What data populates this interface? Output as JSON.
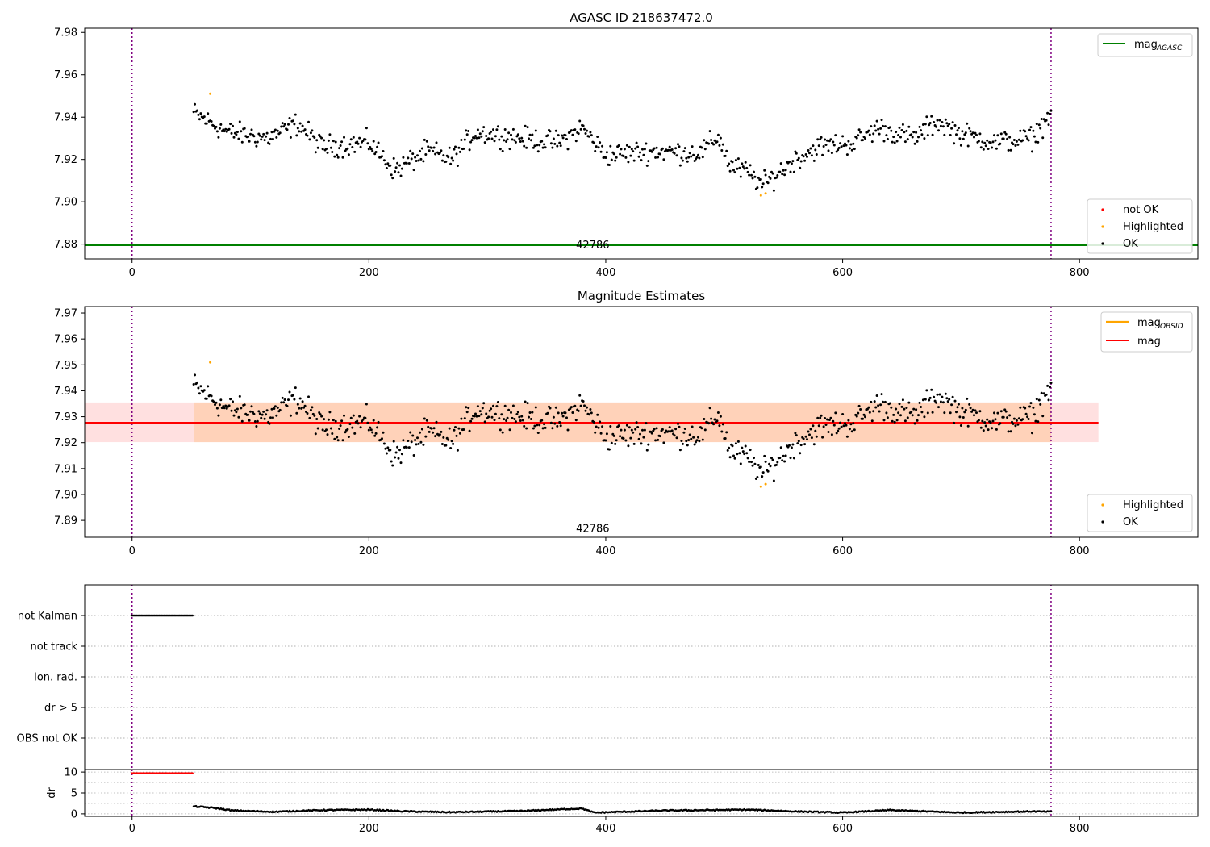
{
  "chart_data": [
    {
      "type": "scatter",
      "title": "AGASC ID 218637472.0",
      "xlabel": "",
      "ylabel": "",
      "xlim": [
        -40,
        900
      ],
      "ylim": [
        7.873,
        7.982
      ],
      "xticks": [
        0,
        200,
        400,
        600,
        800
      ],
      "yticks": [
        7.88,
        7.9,
        7.92,
        7.94,
        7.96,
        7.98
      ],
      "ytick_labels": [
        "7.88",
        "7.90",
        "7.92",
        "7.94",
        "7.96",
        "7.98"
      ],
      "vlines_x": [
        0,
        776
      ],
      "hline": {
        "name": "mag",
        "sub": "AGASC",
        "y": 7.8795,
        "color": "#008000"
      },
      "annotation": {
        "text": "42786",
        "x": 389,
        "y": 7.878
      },
      "series": [
        {
          "name": "not OK",
          "color": "#ff0000",
          "points": []
        },
        {
          "name": "Highlighted",
          "color": "#ffa500",
          "points": [
            [
              66,
              7.951
            ],
            [
              531,
              7.903
            ],
            [
              535,
              7.904
            ]
          ]
        },
        {
          "name": "OK",
          "color": "#000000",
          "points": "see ok_curve"
        }
      ],
      "ok_curve": {
        "x_range": [
          52,
          776
        ],
        "step": 1,
        "knots": [
          [
            52,
            7.942
          ],
          [
            80,
            7.933
          ],
          [
            115,
            7.93
          ],
          [
            140,
            7.937
          ],
          [
            160,
            7.926
          ],
          [
            200,
            7.928
          ],
          [
            222,
            7.915
          ],
          [
            250,
            7.924
          ],
          [
            270,
            7.92
          ],
          [
            290,
            7.933
          ],
          [
            330,
            7.93
          ],
          [
            360,
            7.928
          ],
          [
            380,
            7.935
          ],
          [
            400,
            7.922
          ],
          [
            440,
            7.924
          ],
          [
            480,
            7.923
          ],
          [
            495,
            7.931
          ],
          [
            505,
            7.917
          ],
          [
            520,
            7.914
          ],
          [
            533,
            7.908
          ],
          [
            560,
            7.92
          ],
          [
            580,
            7.926
          ],
          [
            610,
            7.928
          ],
          [
            630,
            7.935
          ],
          [
            660,
            7.93
          ],
          [
            680,
            7.938
          ],
          [
            700,
            7.932
          ],
          [
            730,
            7.928
          ],
          [
            760,
            7.93
          ],
          [
            776,
            7.942
          ]
        ],
        "scatter": 0.0045
      },
      "legend_top": [
        "mag_AGASC"
      ],
      "legend_bottom": [
        "not OK",
        "Highlighted",
        "OK"
      ]
    },
    {
      "type": "scatter",
      "title": "Magnitude Estimates",
      "xlabel": "",
      "ylabel": "",
      "xlim": [
        -40,
        900
      ],
      "ylim": [
        7.8835,
        7.9725
      ],
      "xticks": [
        0,
        200,
        400,
        600,
        800
      ],
      "yticks": [
        7.89,
        7.9,
        7.91,
        7.92,
        7.93,
        7.94,
        7.95,
        7.96,
        7.97
      ],
      "ytick_labels": [
        "7.89",
        "7.90",
        "7.91",
        "7.92",
        "7.93",
        "7.94",
        "7.95",
        "7.96",
        "7.97"
      ],
      "vlines_x": [
        0,
        776
      ],
      "mag_line": {
        "name": "mag",
        "y": 7.9277,
        "band": [
          7.9202,
          7.9355
        ],
        "x_range": [
          -40,
          816
        ],
        "color": "#ff0000"
      },
      "mag_obsid": {
        "name": "mag",
        "sub": "OBSID",
        "y": 7.9277,
        "band": [
          7.9202,
          7.9355
        ],
        "x_range": [
          52,
          776
        ],
        "color": "#ffa500"
      },
      "annotation": {
        "text": "42786",
        "x": 389,
        "y": 7.8855
      },
      "series": [
        {
          "name": "Highlighted",
          "color": "#ffa500",
          "points": [
            [
              66,
              7.951
            ],
            [
              531,
              7.903
            ],
            [
              535,
              7.904
            ]
          ]
        },
        {
          "name": "OK",
          "color": "#000000",
          "points": "same as panel 1"
        }
      ],
      "legend_top": [
        "mag_OBSID",
        "mag"
      ],
      "legend_bottom": [
        "Highlighted",
        "OK"
      ]
    },
    {
      "type": "scatter",
      "title": "",
      "xlabel": "",
      "ylabel": "",
      "xlim": [
        -40,
        900
      ],
      "categories": [
        "not Kalman",
        "not track",
        "Ion. rad.",
        "dr > 5",
        "OBS not OK"
      ],
      "vlines_x": [
        0,
        776
      ],
      "series": [
        {
          "name": "not Kalman",
          "color": "#000000",
          "x_range": [
            0,
            51
          ]
        }
      ]
    },
    {
      "type": "scatter",
      "title": "",
      "xlabel": "",
      "ylabel": "dr",
      "xlim": [
        -40,
        900
      ],
      "ylim": [
        -0.6,
        10.6
      ],
      "xticks": [
        0,
        200,
        400,
        600,
        800
      ],
      "xtick_labels": [
        "0",
        "200",
        "400",
        "600",
        "800"
      ],
      "yticks": [
        0,
        5,
        10
      ],
      "ytick_labels": [
        "0",
        "5",
        "10"
      ],
      "vlines_x": [
        0,
        776
      ],
      "series": [
        {
          "name": "dr > 5",
          "color": "#ff0000",
          "x_range": [
            0,
            51
          ],
          "y": 9.7
        },
        {
          "name": "dr",
          "color": "#000000",
          "x_range": [
            52,
            776
          ],
          "knots": [
            [
              52,
              1.8
            ],
            [
              70,
              1.4
            ],
            [
              85,
              0.8
            ],
            [
              120,
              0.5
            ],
            [
              160,
              0.9
            ],
            [
              200,
              1.0
            ],
            [
              230,
              0.6
            ],
            [
              270,
              0.4
            ],
            [
              330,
              0.7
            ],
            [
              380,
              1.3
            ],
            [
              390,
              0.3
            ],
            [
              450,
              0.8
            ],
            [
              520,
              1.0
            ],
            [
              560,
              0.6
            ],
            [
              600,
              0.3
            ],
            [
              640,
              0.9
            ],
            [
              700,
              0.3
            ],
            [
              760,
              0.6
            ],
            [
              776,
              0.5
            ]
          ]
        }
      ]
    }
  ],
  "legend": {
    "p1": {
      "mag_main": "mag",
      "mag_sub": "AGASC",
      "not_ok": "not OK",
      "highlighted": "Highlighted",
      "ok": "OK"
    },
    "p2": {
      "mag_obsid_main": "mag",
      "mag_obsid_sub": "OBSID",
      "mag": "mag",
      "highlighted": "Highlighted",
      "ok": "OK"
    }
  },
  "colors": {
    "agasc": "#008000",
    "mag": "#ff0000",
    "obsid": "#ffa500",
    "band": "#ffdada",
    "band_obsid": "#ffd0b5",
    "vline": "#800080",
    "grid": "#b0b0b0"
  }
}
